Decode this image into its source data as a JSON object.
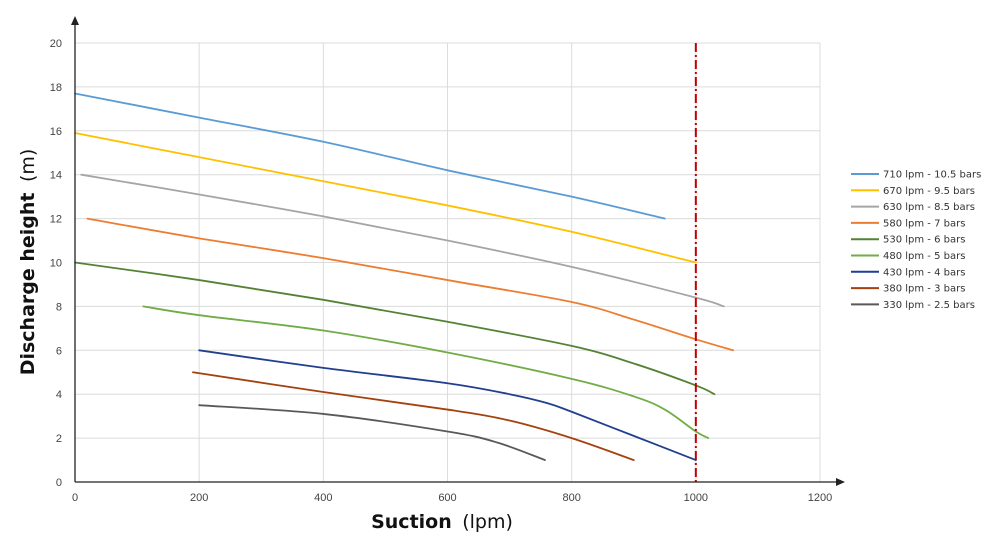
{
  "chart_data": {
    "type": "line",
    "xlabel": {
      "bold": "Suction",
      "unit": "(lpm)"
    },
    "ylabel": {
      "bold": "Discharge height",
      "unit": "(m)"
    },
    "xlim": [
      0,
      1200
    ],
    "ylim": [
      0,
      20
    ],
    "xticks": [
      0,
      200,
      400,
      600,
      800,
      1000,
      1200
    ],
    "yticks": [
      0,
      2,
      4,
      6,
      8,
      10,
      12,
      14,
      16,
      18,
      20
    ],
    "grid": true,
    "legend_position": "right",
    "reference_line": {
      "x": 1000,
      "color": "#c00000",
      "style": "dash-dot"
    },
    "series": [
      {
        "name": "710 lpm - 10.5 bars",
        "color": "#5b9bd5",
        "points": [
          [
            0,
            17.7
          ],
          [
            200,
            16.6
          ],
          [
            400,
            15.5
          ],
          [
            600,
            14.2
          ],
          [
            800,
            13.0
          ],
          [
            950,
            12.0
          ]
        ]
      },
      {
        "name": "670 lpm - 9.5 bars",
        "color": "#ffc000",
        "points": [
          [
            0,
            15.9
          ],
          [
            200,
            14.8
          ],
          [
            400,
            13.7
          ],
          [
            600,
            12.6
          ],
          [
            800,
            11.4
          ],
          [
            1000,
            10.0
          ]
        ]
      },
      {
        "name": "630 lpm - 8.5 bars",
        "color": "#a5a5a5",
        "points": [
          [
            10,
            14.0
          ],
          [
            200,
            13.1
          ],
          [
            400,
            12.1
          ],
          [
            600,
            11.0
          ],
          [
            800,
            9.8
          ],
          [
            1000,
            8.4
          ],
          [
            1045,
            8.0
          ]
        ]
      },
      {
        "name": "580 lpm - 7 bars",
        "color": "#ed7d31",
        "points": [
          [
            20,
            12.0
          ],
          [
            200,
            11.1
          ],
          [
            400,
            10.2
          ],
          [
            600,
            9.2
          ],
          [
            800,
            8.2
          ],
          [
            900,
            7.4
          ],
          [
            1000,
            6.5
          ],
          [
            1060,
            6.0
          ]
        ]
      },
      {
        "name": "530 lpm - 6 bars",
        "color": "#548235",
        "points": [
          [
            0,
            10.0
          ],
          [
            200,
            9.2
          ],
          [
            400,
            8.3
          ],
          [
            600,
            7.3
          ],
          [
            800,
            6.2
          ],
          [
            900,
            5.4
          ],
          [
            1000,
            4.4
          ],
          [
            1030,
            4.0
          ]
        ]
      },
      {
        "name": "480 lpm - 5 bars",
        "color": "#70ad47",
        "points": [
          [
            110,
            8.0
          ],
          [
            200,
            7.6
          ],
          [
            400,
            6.9
          ],
          [
            600,
            5.9
          ],
          [
            800,
            4.7
          ],
          [
            900,
            3.9
          ],
          [
            950,
            3.3
          ],
          [
            1000,
            2.3
          ],
          [
            1020,
            2.0
          ]
        ]
      },
      {
        "name": "430 lpm - 4 bars",
        "color": "#203f8f",
        "points": [
          [
            200,
            6.0
          ],
          [
            400,
            5.2
          ],
          [
            600,
            4.5
          ],
          [
            700,
            4.0
          ],
          [
            760,
            3.6
          ],
          [
            800,
            3.2
          ],
          [
            900,
            2.1
          ],
          [
            1000,
            1.0
          ]
        ]
      },
      {
        "name": "380 lpm - 3 bars",
        "color": "#a5410f",
        "points": [
          [
            190,
            5.0
          ],
          [
            400,
            4.1
          ],
          [
            600,
            3.3
          ],
          [
            700,
            2.8
          ],
          [
            800,
            2.0
          ],
          [
            900,
            1.0
          ]
        ]
      },
      {
        "name": "330 lpm - 2.5 bars",
        "color": "#595959",
        "points": [
          [
            200,
            3.5
          ],
          [
            400,
            3.1
          ],
          [
            600,
            2.3
          ],
          [
            680,
            1.8
          ],
          [
            757,
            1.0
          ]
        ]
      }
    ]
  }
}
